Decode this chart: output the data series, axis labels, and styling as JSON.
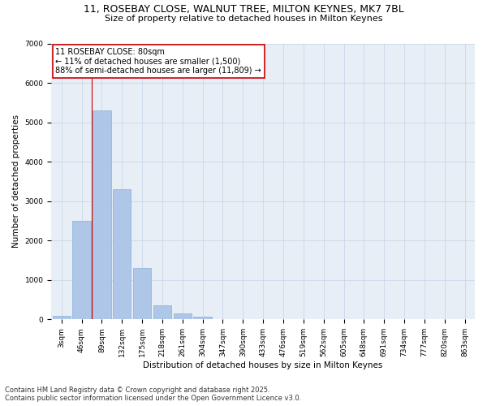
{
  "title_line1": "11, ROSEBAY CLOSE, WALNUT TREE, MILTON KEYNES, MK7 7BL",
  "title_line2": "Size of property relative to detached houses in Milton Keynes",
  "xlabel": "Distribution of detached houses by size in Milton Keynes",
  "ylabel": "Number of detached properties",
  "categories": [
    "3sqm",
    "46sqm",
    "89sqm",
    "132sqm",
    "175sqm",
    "218sqm",
    "261sqm",
    "304sqm",
    "347sqm",
    "390sqm",
    "433sqm",
    "476sqm",
    "519sqm",
    "562sqm",
    "605sqm",
    "648sqm",
    "691sqm",
    "734sqm",
    "777sqm",
    "820sqm",
    "863sqm"
  ],
  "values": [
    80,
    2500,
    5300,
    3300,
    1300,
    350,
    150,
    60,
    10,
    0,
    0,
    0,
    0,
    0,
    0,
    0,
    0,
    0,
    0,
    0,
    0
  ],
  "bar_color": "#aec6e8",
  "bar_edge_color": "#8ab0d0",
  "annotation_text": "11 ROSEBAY CLOSE: 80sqm\n← 11% of detached houses are smaller (1,500)\n88% of semi-detached houses are larger (11,809) →",
  "annotation_box_color": "#ffffff",
  "annotation_box_edge_color": "#cc0000",
  "vline_color": "#cc0000",
  "vline_x": 1.5,
  "ylim": [
    0,
    7000
  ],
  "yticks": [
    0,
    1000,
    2000,
    3000,
    4000,
    5000,
    6000,
    7000
  ],
  "grid_color": "#c8d8e8",
  "bg_color": "#e8eef5",
  "footer_text": "Contains HM Land Registry data © Crown copyright and database right 2025.\nContains public sector information licensed under the Open Government Licence v3.0.",
  "title_fontsize": 9,
  "subtitle_fontsize": 8,
  "axis_label_fontsize": 7.5,
  "tick_fontsize": 6.5,
  "annotation_fontsize": 7,
  "footer_fontsize": 6
}
